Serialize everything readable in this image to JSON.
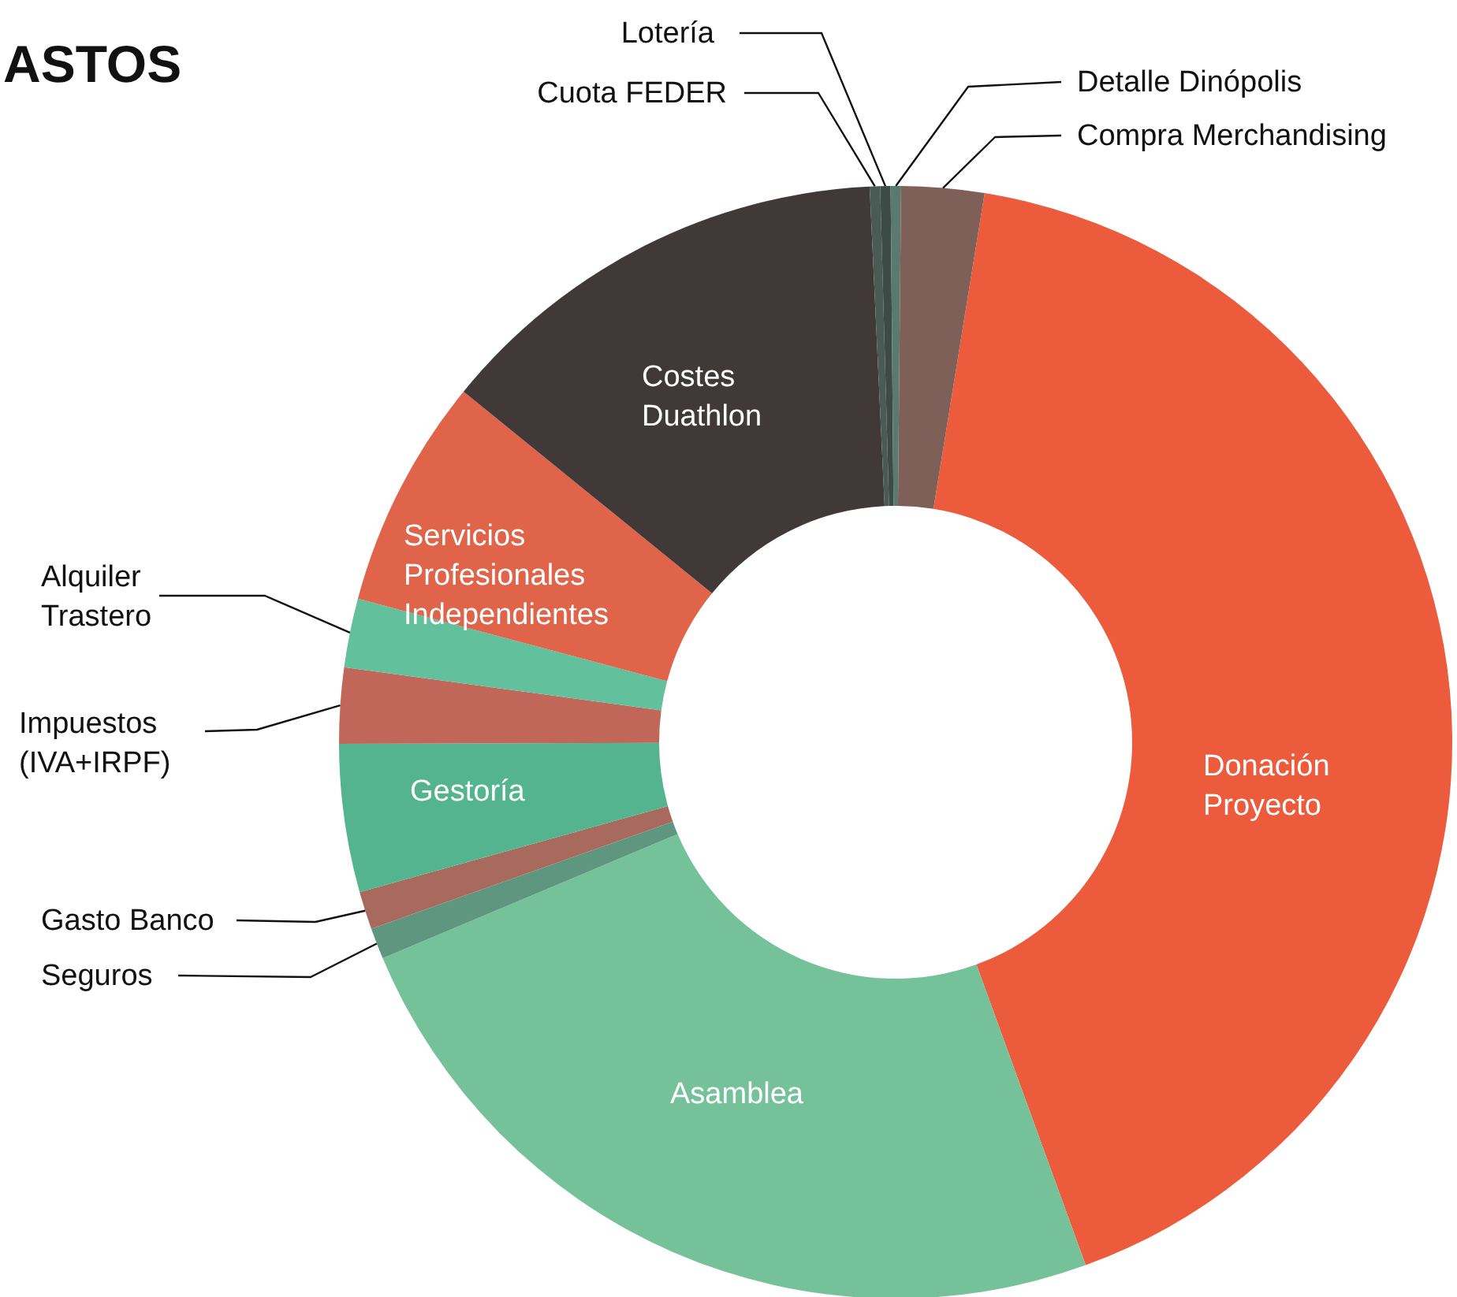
{
  "chart_data": {
    "type": "donut",
    "title": "ASTOS",
    "categories": [
      "Donación Proyecto",
      "Asamblea",
      "Seguros",
      "Gasto Banco",
      "Gestoría",
      "Impuestos (IVA+IRPF)",
      "Alquiler Trastero",
      "Servicios Profesionales Independientes",
      "Costes Duathlon",
      "Cuota FEDER",
      "Lotería",
      "Detalle Dinópolis",
      "Compra Merchandising"
    ],
    "values": [
      41.9,
      24.2,
      0.9,
      1.1,
      4.3,
      2.2,
      2.0,
      6.7,
      13.4,
      0.3,
      0.3,
      0.3,
      2.4
    ],
    "colors": [
      "#eb5b3c",
      "#75c29a",
      "#5e9680",
      "#a86a5c",
      "#53b48f",
      "#c0675a",
      "#62c09c",
      "#e0644a",
      "#413937",
      "#4a5a55",
      "#3d4b47",
      "#5a7a70",
      "#7e6058"
    ]
  }
}
